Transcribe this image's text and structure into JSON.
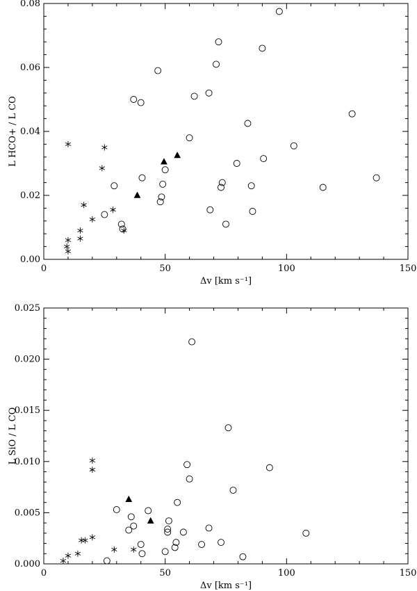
{
  "chart_data": [
    {
      "type": "scatter",
      "xlabel": "Δv [km s⁻¹]",
      "ylabel": "L HCO+ / L CO",
      "xlim": [
        0,
        150
      ],
      "ylim": [
        0,
        0.08
      ],
      "xticks": [
        0,
        50,
        100,
        150
      ],
      "xtick_labels": [
        "0",
        "50",
        "100",
        "150"
      ],
      "yticks": [
        0,
        0.02,
        0.04,
        0.06,
        0.08
      ],
      "ytick_labels": [
        "0.00",
        "0.02",
        "0.04",
        "0.06",
        "0.08"
      ],
      "series": [
        {
          "marker": "asterisk",
          "points": [
            [
              9.5,
              0.004
            ],
            [
              10,
              0.0025
            ],
            [
              10,
              0.006
            ],
            [
              10,
              0.036
            ],
            [
              15,
              0.009
            ],
            [
              15,
              0.0065
            ],
            [
              16.5,
              0.017
            ],
            [
              20,
              0.0125
            ],
            [
              24,
              0.0285
            ],
            [
              25,
              0.035
            ],
            [
              28.5,
              0.0155
            ],
            [
              33,
              0.009
            ]
          ]
        },
        {
          "marker": "filled-triangle",
          "points": [
            [
              38.5,
              0.02
            ],
            [
              49.5,
              0.0305
            ],
            [
              55,
              0.0325
            ]
          ]
        },
        {
          "marker": "open-circle",
          "points": [
            [
              25,
              0.014
            ],
            [
              29,
              0.023
            ],
            [
              32,
              0.011
            ],
            [
              32.5,
              0.0095
            ],
            [
              37,
              0.05
            ],
            [
              40,
              0.049
            ],
            [
              40.5,
              0.0255
            ],
            [
              47,
              0.059
            ],
            [
              48,
              0.018
            ],
            [
              48.5,
              0.0195
            ],
            [
              49,
              0.0235
            ],
            [
              50,
              0.028
            ],
            [
              60,
              0.038
            ],
            [
              62,
              0.051
            ],
            [
              68,
              0.052
            ],
            [
              68.5,
              0.0155
            ],
            [
              71,
              0.061
            ],
            [
              72,
              0.068
            ],
            [
              73,
              0.0225
            ],
            [
              73.5,
              0.024
            ],
            [
              75,
              0.011
            ],
            [
              79.5,
              0.03
            ],
            [
              84,
              0.0425
            ],
            [
              85.5,
              0.023
            ],
            [
              86,
              0.015
            ],
            [
              90,
              0.066
            ],
            [
              90.5,
              0.0315
            ],
            [
              97,
              0.0775
            ],
            [
              103,
              0.0355
            ],
            [
              115,
              0.0225
            ],
            [
              127,
              0.0455
            ],
            [
              137,
              0.0255
            ]
          ]
        }
      ]
    },
    {
      "type": "scatter",
      "xlabel": "Δv [km s⁻¹]",
      "ylabel": "L SiO / L CO",
      "xlim": [
        0,
        150
      ],
      "ylim": [
        0,
        0.025
      ],
      "xticks": [
        0,
        50,
        100,
        150
      ],
      "xtick_labels": [
        "0",
        "50",
        "100",
        "150"
      ],
      "yticks": [
        0,
        0.005,
        0.01,
        0.015,
        0.02,
        0.025
      ],
      "ytick_labels": [
        "0.000",
        "0.005",
        "0.010",
        "0.015",
        "0.020",
        "0.025"
      ],
      "series": [
        {
          "marker": "asterisk",
          "points": [
            [
              8,
              0.0003
            ],
            [
              10,
              0.0008
            ],
            [
              14,
              0.001
            ],
            [
              15.5,
              0.0023
            ],
            [
              17,
              0.0023
            ],
            [
              20,
              0.0026
            ],
            [
              20,
              0.0092
            ],
            [
              20,
              0.0101
            ],
            [
              29,
              0.0014
            ],
            [
              37,
              0.0014
            ]
          ]
        },
        {
          "marker": "filled-triangle",
          "points": [
            [
              35,
              0.0063
            ],
            [
              44,
              0.0042
            ]
          ]
        },
        {
          "marker": "open-circle",
          "points": [
            [
              26,
              0.0003
            ],
            [
              30,
              0.0053
            ],
            [
              35,
              0.0033
            ],
            [
              36,
              0.0046
            ],
            [
              37,
              0.0037
            ],
            [
              40,
              0.0019
            ],
            [
              40.5,
              0.001
            ],
            [
              43,
              0.0052
            ],
            [
              50,
              0.0012
            ],
            [
              51,
              0.0034
            ],
            [
              51,
              0.0031
            ],
            [
              51.5,
              0.0042
            ],
            [
              54,
              0.0016
            ],
            [
              54.5,
              0.0021
            ],
            [
              55,
              0.006
            ],
            [
              57.5,
              0.0031
            ],
            [
              59,
              0.0097
            ],
            [
              60,
              0.0083
            ],
            [
              61,
              0.0217
            ],
            [
              65,
              0.0019
            ],
            [
              68,
              0.0035
            ],
            [
              73,
              0.0021
            ],
            [
              76,
              0.0133
            ],
            [
              78,
              0.0072
            ],
            [
              82,
              0.0007
            ],
            [
              93,
              0.0094
            ],
            [
              108,
              0.003
            ]
          ]
        }
      ]
    }
  ]
}
